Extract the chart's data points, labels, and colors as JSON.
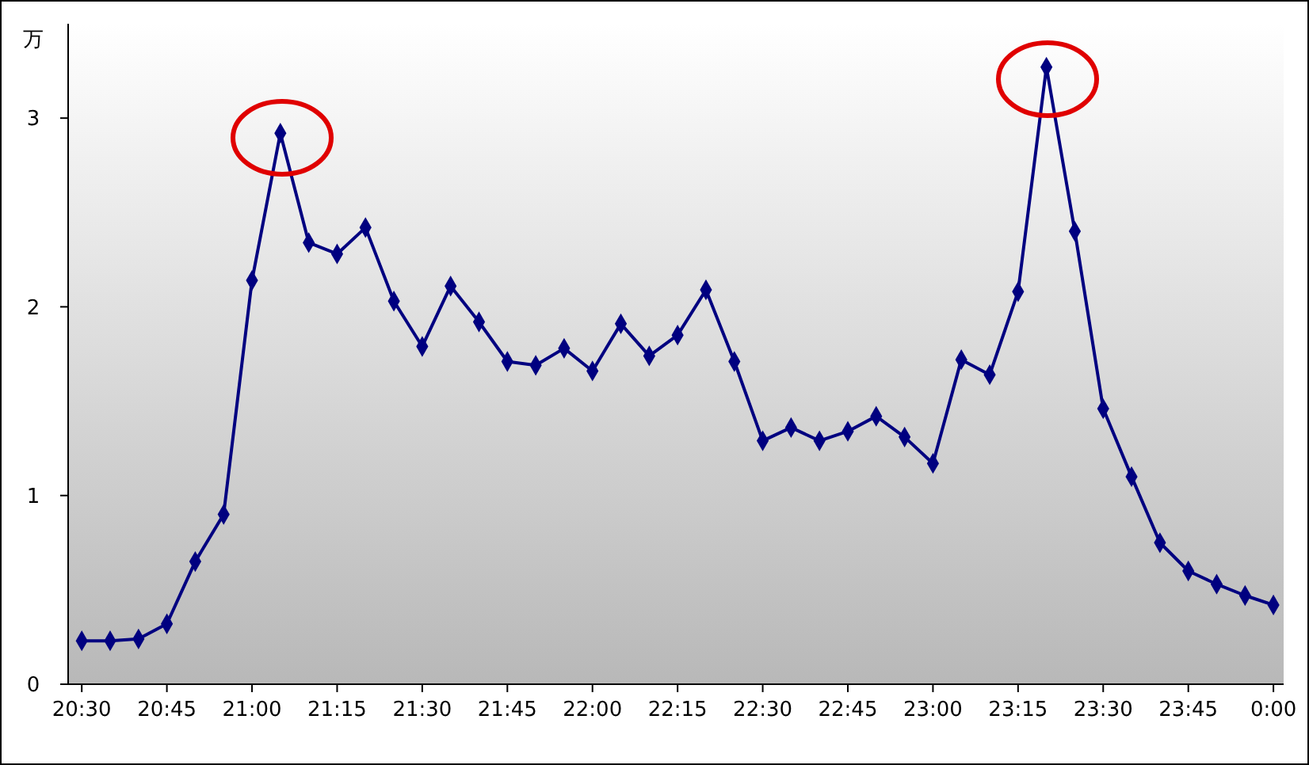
{
  "chart_data": {
    "type": "line",
    "ylabel": "万",
    "x": [
      20.5,
      20.5833,
      20.6667,
      20.75,
      20.8333,
      20.9167,
      21,
      21.0833,
      21.1667,
      21.25,
      21.3333,
      21.4167,
      21.5,
      21.5833,
      21.6667,
      21.75,
      21.8333,
      21.9167,
      22,
      22.0833,
      22.1667,
      22.25,
      22.3333,
      22.4167,
      22.5,
      22.5833,
      22.6667,
      22.75,
      22.8333,
      22.9167,
      23,
      23.0833,
      23.1667,
      23.25,
      23.3333,
      23.4167,
      23.5,
      23.5833,
      23.6667,
      23.75,
      23.8333,
      23.9167,
      24
    ],
    "series": [
      {
        "color": "#000080",
        "values": [
          0.23,
          0.23,
          0.24,
          0.32,
          0.65,
          0.9,
          2.14,
          2.92,
          2.34,
          2.28,
          2.42,
          2.03,
          1.79,
          2.11,
          1.92,
          1.71,
          1.69,
          1.78,
          1.66,
          1.91,
          1.74,
          1.85,
          2.09,
          1.71,
          1.29,
          1.36,
          1.29,
          1.34,
          1.42,
          1.31,
          1.17,
          1.72,
          1.64,
          2.08,
          3.27,
          2.4,
          1.46,
          1.1,
          0.75,
          0.6,
          0.53,
          0.47,
          0.42
        ]
      }
    ],
    "xlim": [
      20.46,
      24.03
    ],
    "xticks": [
      {
        "value": 20.5,
        "label": "20:30"
      },
      {
        "value": 20.75,
        "label": "20:45"
      },
      {
        "value": 21,
        "label": "21:00"
      },
      {
        "value": 21.25,
        "label": "21:15"
      },
      {
        "value": 21.5,
        "label": "21:30"
      },
      {
        "value": 21.75,
        "label": "21:45"
      },
      {
        "value": 22,
        "label": "22:00"
      },
      {
        "value": 22.25,
        "label": "22:15"
      },
      {
        "value": 22.5,
        "label": "22:30"
      },
      {
        "value": 22.75,
        "label": "22:45"
      },
      {
        "value": 23,
        "label": "23:00"
      },
      {
        "value": 23.25,
        "label": "23:15"
      },
      {
        "value": 23.5,
        "label": "23:30"
      },
      {
        "value": 23.75,
        "label": "23:45"
      },
      {
        "value": 24,
        "label": "0:00"
      }
    ],
    "ylim": [
      0,
      3.5
    ],
    "yticks": [
      0,
      1,
      2,
      3
    ],
    "marker": "diamond",
    "line_style": "solid",
    "grid": false
  }
}
